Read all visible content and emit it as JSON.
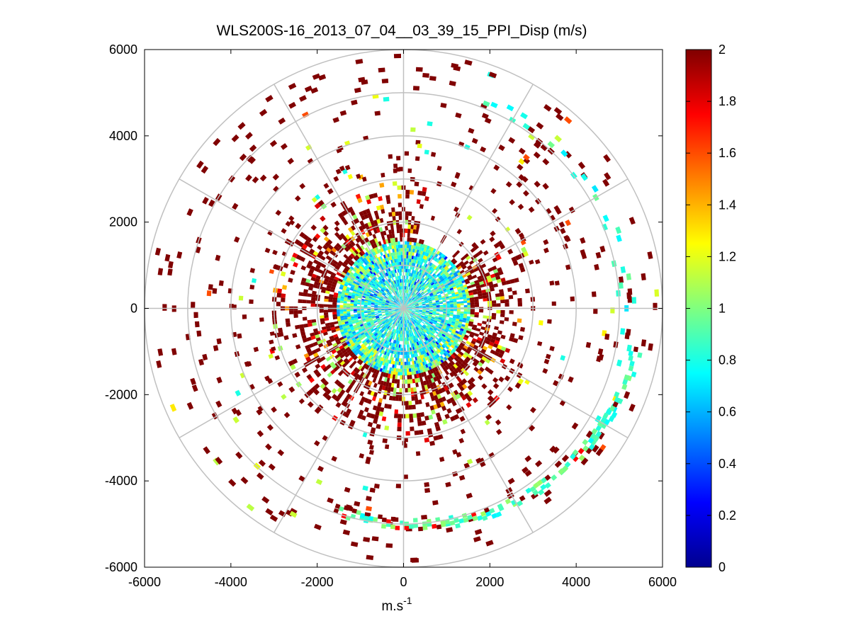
{
  "chart_data": {
    "type": "heatmap",
    "subtype": "polar-ppi",
    "title": "WLS200S-16_2013_07_04__03_39_15_PPI_Disp (m/s)",
    "xlabel": "m.s",
    "xlabel_sup": "-1",
    "ylabel": "",
    "xlim": [
      -6000,
      6000
    ],
    "ylim": [
      -6000,
      6000
    ],
    "xticks": [
      "-6000",
      "-4000",
      "-2000",
      "0",
      "2000",
      "4000",
      "6000"
    ],
    "yticks": [
      "6000",
      "4000",
      "2000",
      "0",
      "-2000",
      "-4000",
      "-6000"
    ],
    "range_rings_m": [
      1000,
      2000,
      3000,
      4000,
      5000,
      6000
    ],
    "spoke_angles_deg": [
      0,
      30,
      60,
      90,
      120,
      150,
      180,
      210,
      240,
      270,
      300,
      330
    ],
    "colorbar": {
      "min": 0,
      "max": 2,
      "colormap": "jet",
      "tick_labels": [
        "2",
        "1.8",
        "1.6",
        "1.4",
        "1.2",
        "1",
        "0.8",
        "0.6",
        "0.4",
        "0.2",
        "0"
      ]
    },
    "field_description": {
      "inner_region_radius_m": [
        0,
        1600
      ],
      "inner_region_typical_value": 0.8,
      "middle_region_radius_m": [
        1600,
        3000
      ],
      "middle_region_typical_value": 2.0,
      "outer_arc_radius_m": [
        4500,
        5600
      ],
      "outer_arc_azimuth_deg": [
        100,
        200
      ],
      "outer_arc_typical_value": 0.9
    }
  }
}
